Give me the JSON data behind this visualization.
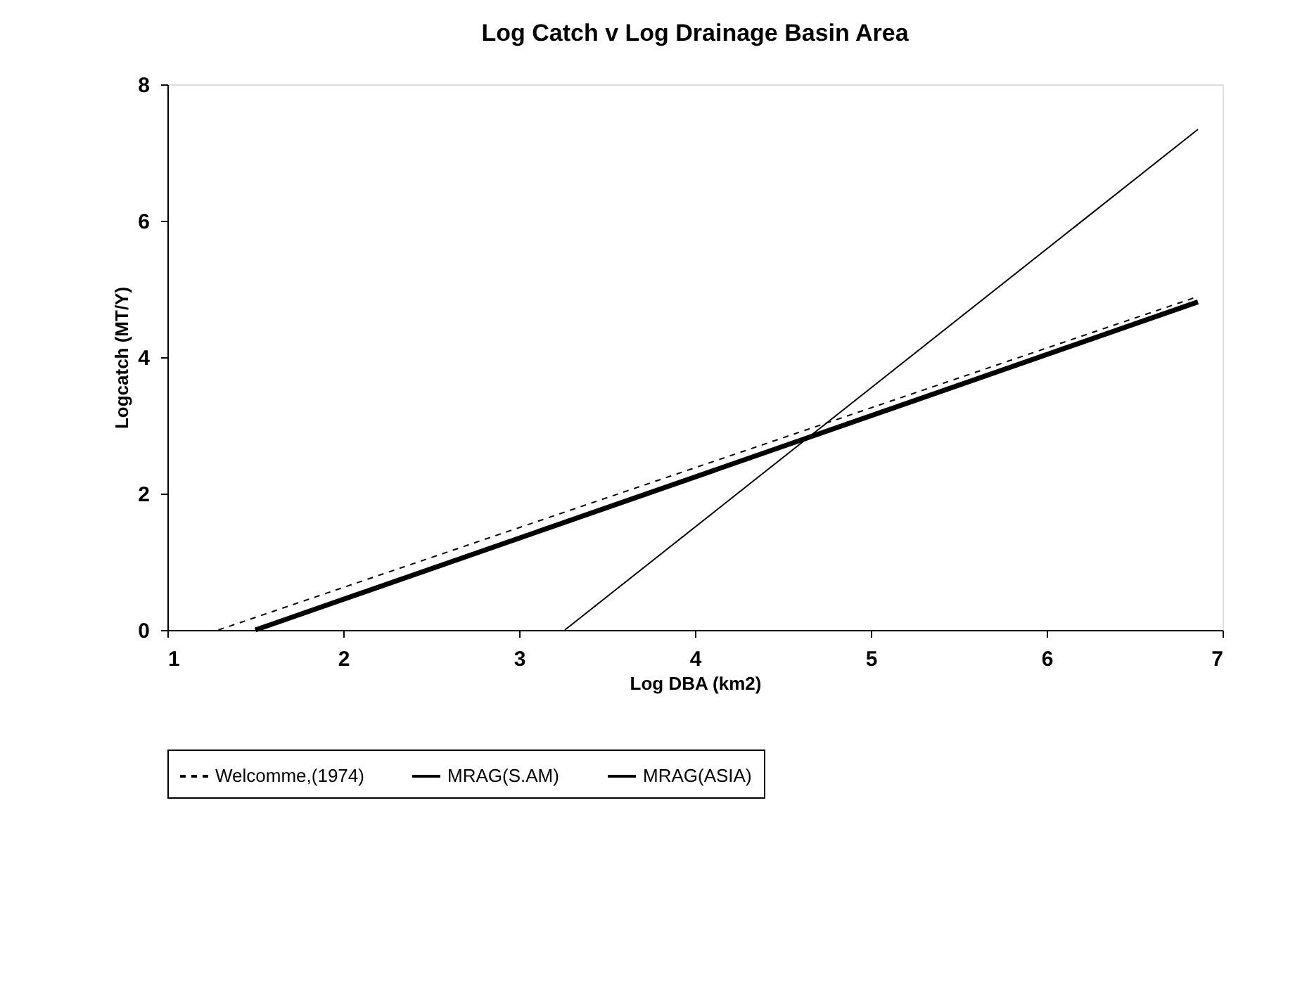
{
  "chart_data": {
    "type": "line",
    "title": "Log Catch v  Log Drainage Basin Area",
    "xlabel": "Log DBA (km2)",
    "ylabel": "Logcatch (MT/Y)",
    "series": [
      {
        "name": "Welcomme,(1974)",
        "color": "#000000",
        "line_style": "dashed",
        "x": [
          1.29,
          6.85
        ],
        "values": [
          0,
          4.88
        ]
      },
      {
        "name": "MRAG(S.AM)",
        "color": "#000000",
        "line_style": "solid",
        "x": [
          1.5,
          6.86
        ],
        "values": [
          0,
          4.81
        ]
      },
      {
        "name": "MRAG(ASIA)",
        "color": "#000000",
        "line_style": "solid",
        "x": [
          3.26,
          6.86
        ],
        "values": [
          0,
          7.34
        ]
      }
    ],
    "xlim": [
      1,
      7
    ],
    "xticks": [
      1,
      2,
      3,
      4,
      5,
      6,
      7
    ],
    "ylim": [
      0,
      8
    ],
    "yticks": [
      0,
      2,
      4,
      6,
      8
    ],
    "grid": false,
    "legend": "bottom",
    "marker": "none"
  }
}
